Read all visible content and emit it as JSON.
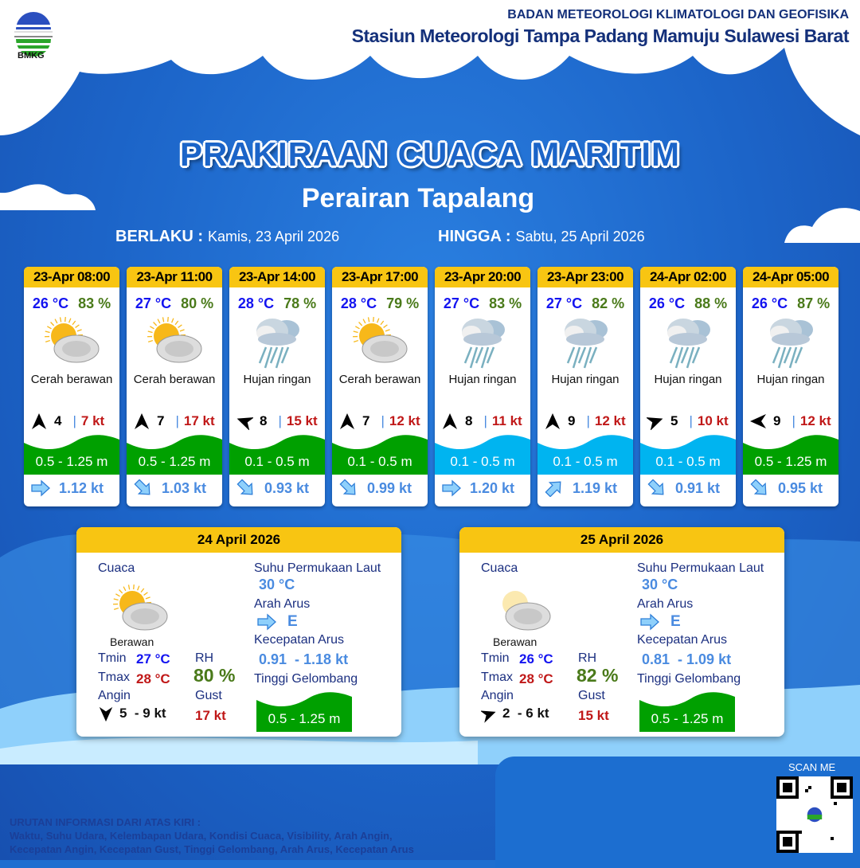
{
  "header": {
    "agency": "BADAN METEOROLOGI KLIMATOLOGI DAN GEOFISIKA",
    "station": "Stasiun Meteorologi Tampa Padang Mamuju Sulawesi Barat",
    "logo_text": "BMKG"
  },
  "title": "PRAKIRAAN CUACA MARITIM",
  "area": "Perairan Tapalang",
  "validity": {
    "from_label": "BERLAKU :",
    "from": "Kamis, 23 April 2026",
    "to_label": "HINGGA :",
    "to": "Sabtu, 25 April 2026"
  },
  "colors": {
    "wave_green": "#00a000",
    "wave_cyan": "#00b4f0",
    "header_yellow": "#f8c512",
    "temp": "#1414f0",
    "rh": "#4a7a1a",
    "gust": "#c01818"
  },
  "forecasts": [
    {
      "time": "23-Apr 08:00",
      "temp": "26 °C",
      "rh": "83 %",
      "icon": "sun-cloud-icon",
      "condition": "Cerah berawan",
      "wind_dir_deg": 0,
      "wind": "4",
      "gust": "7 kt",
      "wave": "0.5 - 1.25 m",
      "wave_color": "green",
      "current_dir_deg": 90,
      "current": "1.12 kt"
    },
    {
      "time": "23-Apr 11:00",
      "temp": "27 °C",
      "rh": "80 %",
      "icon": "sun-cloud-icon",
      "condition": "Cerah berawan",
      "wind_dir_deg": 0,
      "wind": "7",
      "gust": "17 kt",
      "wave": "0.5 - 1.25 m",
      "wave_color": "green",
      "current_dir_deg": 135,
      "current": "1.03 kt"
    },
    {
      "time": "23-Apr 14:00",
      "temp": "28 °C",
      "rh": "78 %",
      "icon": "rain-cloud-icon",
      "condition": "Hujan ringan",
      "wind_dir_deg": 290,
      "wind": "8",
      "gust": "15 kt",
      "wave": "0.1 - 0.5 m",
      "wave_color": "green",
      "current_dir_deg": 135,
      "current": "0.93 kt"
    },
    {
      "time": "23-Apr 17:00",
      "temp": "28 °C",
      "rh": "79 %",
      "icon": "sun-cloud-icon",
      "condition": "Cerah berawan",
      "wind_dir_deg": 0,
      "wind": "7",
      "gust": "12 kt",
      "wave": "0.1 - 0.5 m",
      "wave_color": "green",
      "current_dir_deg": 135,
      "current": "0.99 kt"
    },
    {
      "time": "23-Apr 20:00",
      "temp": "27 °C",
      "rh": "83 %",
      "icon": "rain-cloud-icon",
      "condition": "Hujan ringan",
      "wind_dir_deg": 0,
      "wind": "8",
      "gust": "11 kt",
      "wave": "0.1 - 0.5 m",
      "wave_color": "cyan",
      "current_dir_deg": 90,
      "current": "1.20 kt"
    },
    {
      "time": "23-Apr 23:00",
      "temp": "27 °C",
      "rh": "82 %",
      "icon": "rain-cloud-icon",
      "condition": "Hujan ringan",
      "wind_dir_deg": 0,
      "wind": "9",
      "gust": "12 kt",
      "wave": "0.1 - 0.5 m",
      "wave_color": "cyan",
      "current_dir_deg": 45,
      "current": "1.19 kt"
    },
    {
      "time": "24-Apr 02:00",
      "temp": "26 °C",
      "rh": "88 %",
      "icon": "rain-cloud-icon",
      "condition": "Hujan ringan",
      "wind_dir_deg": 70,
      "wind": "5",
      "gust": "10 kt",
      "wave": "0.1 - 0.5 m",
      "wave_color": "cyan",
      "current_dir_deg": 135,
      "current": "0.91 kt"
    },
    {
      "time": "24-Apr 05:00",
      "temp": "26 °C",
      "rh": "87 %",
      "icon": "rain-cloud-icon",
      "condition": "Hujan ringan",
      "wind_dir_deg": 270,
      "wind": "9",
      "gust": "12 kt",
      "wave": "0.5 - 1.25 m",
      "wave_color": "green",
      "current_dir_deg": 135,
      "current": "0.95 kt"
    }
  ],
  "days": [
    {
      "date": "24 April 2026",
      "weather_label": "Cuaca",
      "icon": "sun-cloud-icon",
      "condition": "Berawan",
      "tmin_label": "Tmin",
      "tmin": "27 °C",
      "tmax_label": "Tmax",
      "tmax": "28 °C",
      "rh_label": "RH",
      "rh": "80 %",
      "wind_label": "Angin",
      "wind_dir_deg": 180,
      "wind": "5  - 9 kt",
      "gust_label": "Gust",
      "gust": "17 kt",
      "sst_label": "Suhu Permukaan Laut",
      "sst": "30 °C",
      "current_dir_label": "Arah Arus",
      "current_dir": "E",
      "current_speed_label": "Kecepatan Arus",
      "current_speed": "0.91  - 1.18 kt",
      "wave_label": "Tinggi Gelombang",
      "wave": "0.5 - 1.25 m"
    },
    {
      "date": "25 April 2026",
      "weather_label": "Cuaca",
      "icon": "faint-sun-cloud-icon",
      "condition": "Berawan",
      "tmin_label": "Tmin",
      "tmin": "26 °C",
      "tmax_label": "Tmax",
      "tmax": "28 °C",
      "rh_label": "RH",
      "rh": "82 %",
      "wind_label": "Angin",
      "wind_dir_deg": 70,
      "wind": "2  - 6 kt",
      "gust_label": "Gust",
      "gust": "15 kt",
      "sst_label": "Suhu Permukaan Laut",
      "sst": "30 °C",
      "current_dir_label": "Arah Arus",
      "current_dir": "E",
      "current_speed_label": "Kecepatan Arus",
      "current_speed": "0.81  - 1.09 kt",
      "wave_label": "Tinggi Gelombang",
      "wave": "0.5 - 1.25 m"
    }
  ],
  "footer": {
    "legend_title": "URUTAN INFORMASI DARI ATAS KIRI :",
    "legend_line1": "Waktu, Suhu Udara, Kelembapan Udara, Kondisi Cuaca, Visibility, Arah Angin,",
    "legend_line2": "Kecepatan Angin, Kecepatan Gust, Tinggi Gelombang, Arah Arus, Kecepatan Arus",
    "scan_label": "SCAN ME"
  }
}
